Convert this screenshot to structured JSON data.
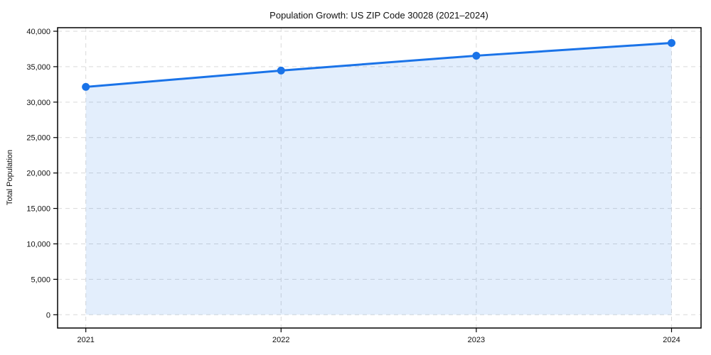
{
  "chart_data": {
    "type": "area",
    "title": "Population Growth: US ZIP Code 30028 (2021–2024)",
    "xlabel": "",
    "ylabel": "Total Population",
    "categories": [
      "2021",
      "2022",
      "2023",
      "2024"
    ],
    "series": [
      {
        "name": "Total Population",
        "values": [
          32150,
          34450,
          36550,
          38350
        ]
      }
    ],
    "ylim": [
      0,
      40000
    ],
    "ytick_step": 5000,
    "ytick_labels": [
      "0",
      "5,000",
      "10,000",
      "15,000",
      "20,000",
      "25,000",
      "30,000",
      "35,000",
      "40,000"
    ],
    "grid": "dashed-both-axes",
    "legend_position": "none",
    "line_color": "#1a73e8",
    "marker_color": "#1a73e8",
    "fill_color": "rgba(26,115,232,0.12)",
    "grid_color": "#d9d9d9",
    "frame_color": "#000000",
    "text_color": "#111111",
    "background_color": "#ffffff"
  }
}
